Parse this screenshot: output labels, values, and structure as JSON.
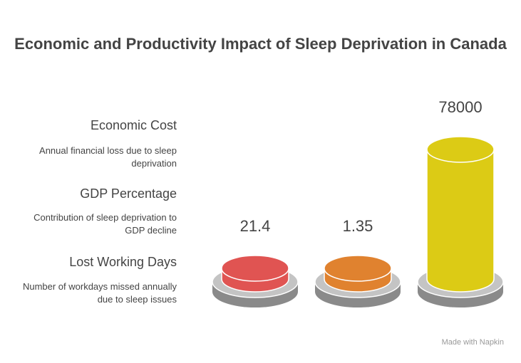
{
  "chart_data": {
    "type": "cylinder",
    "title": "Economic and Productivity Impact of Sleep Deprivation in Canada",
    "categories": [
      "Economic Cost",
      "GDP Percentage",
      "Lost Working Days"
    ],
    "descriptions": [
      "Annual financial loss due to sleep deprivation",
      "Contribution of sleep deprivation to GDP decline",
      "Number of workdays missed annually due to sleep issues"
    ],
    "values": [
      21.4,
      1.35,
      78000
    ],
    "colors": [
      "#e05452",
      "#e0822f",
      "#dccb15"
    ],
    "footer": "Made with Napkin"
  }
}
